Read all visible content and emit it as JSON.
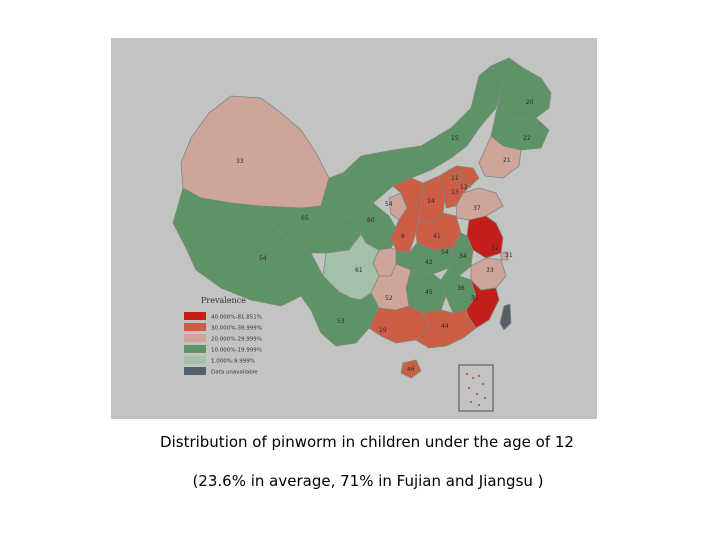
{
  "caption": {
    "line1": "Distribution of pinworm in  children under the age of 12",
    "line2": "(23.6% in average, 71% in Fujian and Jiangsu )"
  },
  "legend": {
    "title": "Prevalence",
    "items": [
      {
        "label": "40.000%-81.851%",
        "color": "#c41e1a"
      },
      {
        "label": "30.000%-39.999%",
        "color": "#cd5d45"
      },
      {
        "label": "20.000%-29.999%",
        "color": "#cfa49a"
      },
      {
        "label": "10.000%-19.999%",
        "color": "#5d9366"
      },
      {
        "label": "1.000%-9.999%",
        "color": "#a4c0a8"
      },
      {
        "label": "Data unavailable",
        "color": "#56606a"
      }
    ]
  },
  "regions": [
    {
      "id": "xinjiang",
      "label": "33",
      "class": "20-30"
    },
    {
      "id": "tibet",
      "label": "54",
      "class": "10-20"
    },
    {
      "id": "qinghai",
      "label": "65",
      "class": "10-20"
    },
    {
      "id": "gansu",
      "label": "60",
      "class": "10-20"
    },
    {
      "id": "inner-mongolia",
      "label": "15",
      "class": "10-20"
    },
    {
      "id": "heilongjiang",
      "label": "20",
      "class": "10-20"
    },
    {
      "id": "jilin",
      "label": "22",
      "class": "10-20"
    },
    {
      "id": "liaoning",
      "label": "21",
      "class": "20-30"
    },
    {
      "id": "sichuan",
      "label": "61",
      "class": "1-10"
    },
    {
      "id": "yunnan",
      "label": "53",
      "class": "10-20"
    },
    {
      "id": "guizhou",
      "label": "52",
      "class": "20-30"
    },
    {
      "id": "chongqing",
      "label": "42",
      "class": "20-30"
    },
    {
      "id": "shaanxi",
      "label": "6",
      "class": "30-40"
    },
    {
      "id": "shanxi",
      "label": "14",
      "class": "30-40"
    },
    {
      "id": "ningxia",
      "label": "54",
      "class": "20-30"
    },
    {
      "id": "henan",
      "label": "41",
      "class": "30-40"
    },
    {
      "id": "hubei",
      "label": "54",
      "class": "10-20"
    },
    {
      "id": "hunan",
      "label": "45",
      "class": "10-20"
    },
    {
      "id": "jiangxi",
      "label": "36",
      "class": "10-20"
    },
    {
      "id": "guangxi",
      "label": "19",
      "class": "30-40"
    },
    {
      "id": "guangdong",
      "label": "44",
      "class": "30-40"
    },
    {
      "id": "hainan",
      "label": "46",
      "class": "30-40"
    },
    {
      "id": "hebei",
      "label": "13",
      "class": "30-40"
    },
    {
      "id": "beijing",
      "label": "11",
      "class": "30-40"
    },
    {
      "id": "tianjin",
      "label": "12",
      "class": "30-40"
    },
    {
      "id": "shandong",
      "label": "37",
      "class": "20-30"
    },
    {
      "id": "jiangsu",
      "label": "32",
      "class": "40-82"
    },
    {
      "id": "anhui",
      "label": "34",
      "class": "10-20"
    },
    {
      "id": "shanghai",
      "label": "31",
      "class": "20-30"
    },
    {
      "id": "zhejiang",
      "label": "33",
      "class": "20-30"
    },
    {
      "id": "fujian",
      "label": "35",
      "class": "40-82"
    },
    {
      "id": "taiwan",
      "label": "",
      "class": "na"
    }
  ]
}
